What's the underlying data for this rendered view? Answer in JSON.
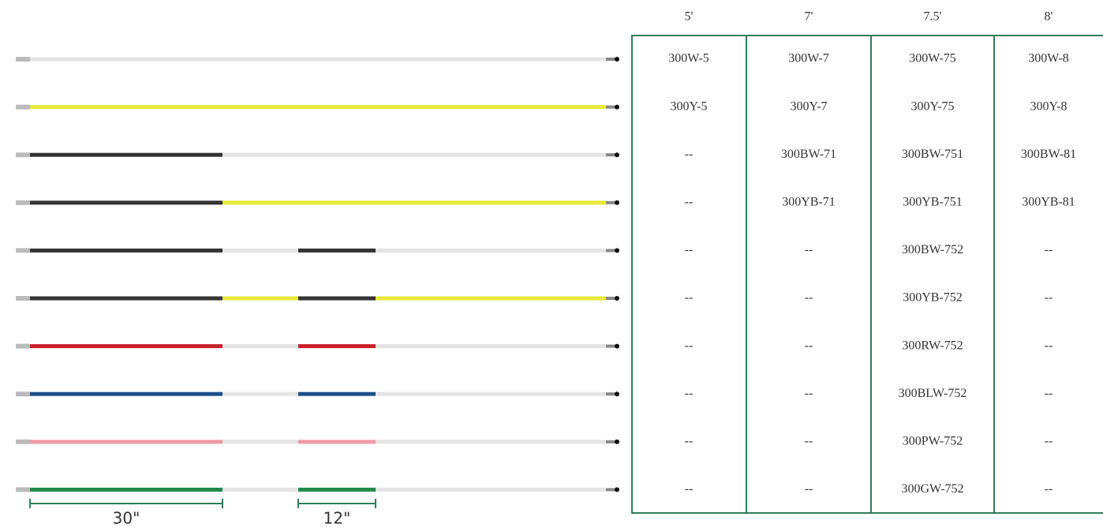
{
  "table": {
    "columns": [
      "5'",
      "7'",
      "7.5'",
      "8'"
    ],
    "rows": [
      [
        "300W-5",
        "300W-7",
        "300W-75",
        "300W-8"
      ],
      [
        "300Y-5",
        "300Y-7",
        "300Y-75",
        "300Y-8"
      ],
      [
        "--",
        "300BW-71",
        "300BW-751",
        "300BW-81"
      ],
      [
        "--",
        "300YB-71",
        "300YB-751",
        "300YB-81"
      ],
      [
        "--",
        "--",
        "300BW-752",
        "--"
      ],
      [
        "--",
        "--",
        "300YB-752",
        "--"
      ],
      [
        "--",
        "--",
        "300RW-752",
        "--"
      ],
      [
        "--",
        "--",
        "300BLW-752",
        "--"
      ],
      [
        "--",
        "--",
        "300PW-752",
        "--"
      ],
      [
        "--",
        "--",
        "300GW-752",
        "--"
      ]
    ]
  },
  "dimensions": [
    "30\"",
    "12\""
  ]
}
